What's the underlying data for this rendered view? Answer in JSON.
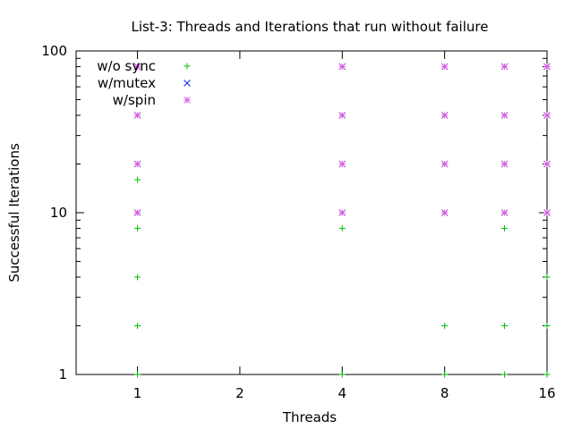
{
  "chart_data": {
    "type": "scatter",
    "title": "List-3: Threads and Iterations that run without failure",
    "xlabel": "Threads",
    "ylabel": "Successful Iterations",
    "xscale": "log2",
    "yscale": "log10",
    "xlim": [
      0.66,
      16
    ],
    "ylim": [
      1,
      100
    ],
    "xticks": [
      {
        "value": 1,
        "label": "1"
      },
      {
        "value": 2,
        "label": "2"
      },
      {
        "value": 4,
        "label": "4"
      },
      {
        "value": 8,
        "label": "8"
      },
      {
        "value": 16,
        "label": "16"
      }
    ],
    "yticks": [
      {
        "value": 1,
        "label": "1"
      },
      {
        "value": 10,
        "label": "10"
      },
      {
        "value": 100,
        "label": "100"
      }
    ],
    "grid": false,
    "legend_position": "top-left",
    "series": [
      {
        "name": "w/o sync",
        "marker": "plus",
        "color": "#00c000",
        "points": [
          [
            1,
            1
          ],
          [
            1,
            2
          ],
          [
            1,
            4
          ],
          [
            1,
            8
          ],
          [
            1,
            16
          ],
          [
            4,
            1
          ],
          [
            4,
            8
          ],
          [
            8,
            1
          ],
          [
            8,
            2
          ],
          [
            12,
            1
          ],
          [
            12,
            2
          ],
          [
            12,
            8
          ],
          [
            16,
            1
          ],
          [
            16,
            2
          ],
          [
            16,
            4
          ]
        ]
      },
      {
        "name": "w/mutex",
        "marker": "cross",
        "color": "#0020ff",
        "points": [
          [
            1,
            10
          ],
          [
            1,
            20
          ],
          [
            1,
            40
          ],
          [
            1,
            80
          ],
          [
            4,
            10
          ],
          [
            4,
            20
          ],
          [
            4,
            40
          ],
          [
            4,
            80
          ],
          [
            8,
            10
          ],
          [
            8,
            20
          ],
          [
            8,
            40
          ],
          [
            8,
            80
          ],
          [
            12,
            10
          ],
          [
            12,
            20
          ],
          [
            12,
            40
          ],
          [
            12,
            80
          ],
          [
            16,
            10
          ],
          [
            16,
            20
          ],
          [
            16,
            40
          ],
          [
            16,
            80
          ]
        ]
      },
      {
        "name": "w/spin",
        "marker": "star",
        "color": "#e060e0",
        "points": [
          [
            1,
            10
          ],
          [
            1,
            20
          ],
          [
            1,
            40
          ],
          [
            1,
            80
          ],
          [
            4,
            10
          ],
          [
            4,
            20
          ],
          [
            4,
            40
          ],
          [
            4,
            80
          ],
          [
            8,
            10
          ],
          [
            8,
            20
          ],
          [
            8,
            40
          ],
          [
            8,
            80
          ],
          [
            12,
            10
          ],
          [
            12,
            20
          ],
          [
            12,
            40
          ],
          [
            12,
            80
          ],
          [
            16,
            10
          ],
          [
            16,
            20
          ],
          [
            16,
            40
          ],
          [
            16,
            80
          ]
        ]
      }
    ]
  }
}
